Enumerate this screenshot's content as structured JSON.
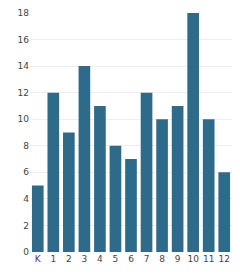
{
  "chart_data": {
    "type": "bar",
    "categories": [
      "K",
      "1",
      "2",
      "3",
      "4",
      "5",
      "6",
      "7",
      "8",
      "9",
      "10",
      "11",
      "12"
    ],
    "values": [
      5,
      12,
      9,
      14,
      11,
      8,
      7,
      12,
      10,
      11,
      18,
      10,
      6
    ],
    "color": "#2e6b8a",
    "ylim": [
      0,
      18
    ],
    "yticks": [
      0,
      2,
      4,
      6,
      8,
      10,
      12,
      14,
      16,
      18
    ],
    "grid": true
  }
}
